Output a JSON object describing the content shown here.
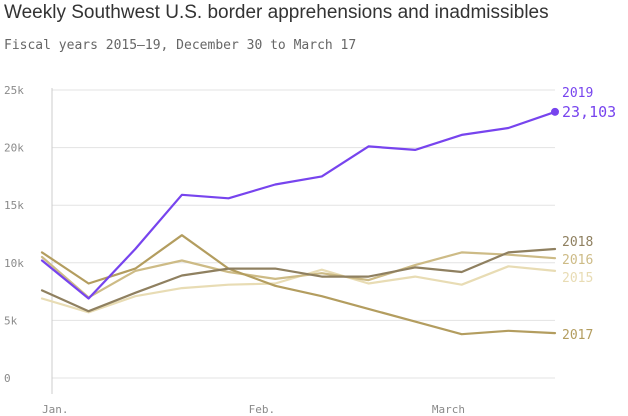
{
  "title": "Weekly Southwest U.S. border apprehensions and inadmissibles",
  "subtitle": "Fiscal years 2015–19, December 30 to March 17",
  "colors": {
    "2019": "#7744ee",
    "2018": "#8f8060",
    "2017": "#b39d5f",
    "2016": "#cdbb86",
    "2015": "#e8dcb4",
    "grid": "#e3e3e3",
    "axis": "#cccccc"
  },
  "chart_data": {
    "type": "line",
    "title": "Weekly Southwest U.S. border apprehensions and inadmissibles",
    "subtitle": "Fiscal years 2015–19, December 30 to March 17",
    "xlabel": "",
    "ylabel": "",
    "ylim": [
      0,
      25000
    ],
    "yticks": [
      0,
      5000,
      10000,
      15000,
      20000,
      25000
    ],
    "ytick_labels": [
      "0",
      "5k",
      "10k",
      "15k",
      "20k",
      "25k"
    ],
    "x_week_start_dates": [
      "Dec 30",
      "Jan 6",
      "Jan 13",
      "Jan 20",
      "Jan 27",
      "Feb 3",
      "Feb 10",
      "Feb 17",
      "Feb 24",
      "Mar 3",
      "Mar 10",
      "Mar 17"
    ],
    "xtick_labels": [
      {
        "label": "Jan.",
        "at": "Jan 1"
      },
      {
        "label": "Feb.",
        "at": "Feb 1"
      },
      {
        "label": "March",
        "at": "Mar 1"
      }
    ],
    "grid": true,
    "legend": "labels at line ends (right)",
    "series": [
      {
        "name": "2019",
        "values": [
          10200,
          6900,
          11200,
          15900,
          15600,
          16800,
          17500,
          20100,
          19800,
          21100,
          21700,
          23103
        ],
        "end_value_label": "23,103"
      },
      {
        "name": "2018",
        "values": [
          7600,
          5800,
          7400,
          8900,
          9500,
          9500,
          8800,
          8800,
          9600,
          9200,
          10900,
          11200
        ]
      },
      {
        "name": "2017",
        "values": [
          10900,
          8200,
          9500,
          12400,
          9500,
          8000,
          7100,
          6000,
          4900,
          3800,
          4100,
          3900
        ]
      },
      {
        "name": "2016",
        "values": [
          10500,
          7000,
          9300,
          10200,
          9200,
          8600,
          9100,
          8500,
          9800,
          10900,
          10700,
          10400
        ]
      },
      {
        "name": "2015",
        "values": [
          6900,
          5700,
          7100,
          7800,
          8100,
          8200,
          9400,
          8200,
          8800,
          8100,
          9700,
          9300
        ]
      }
    ]
  }
}
